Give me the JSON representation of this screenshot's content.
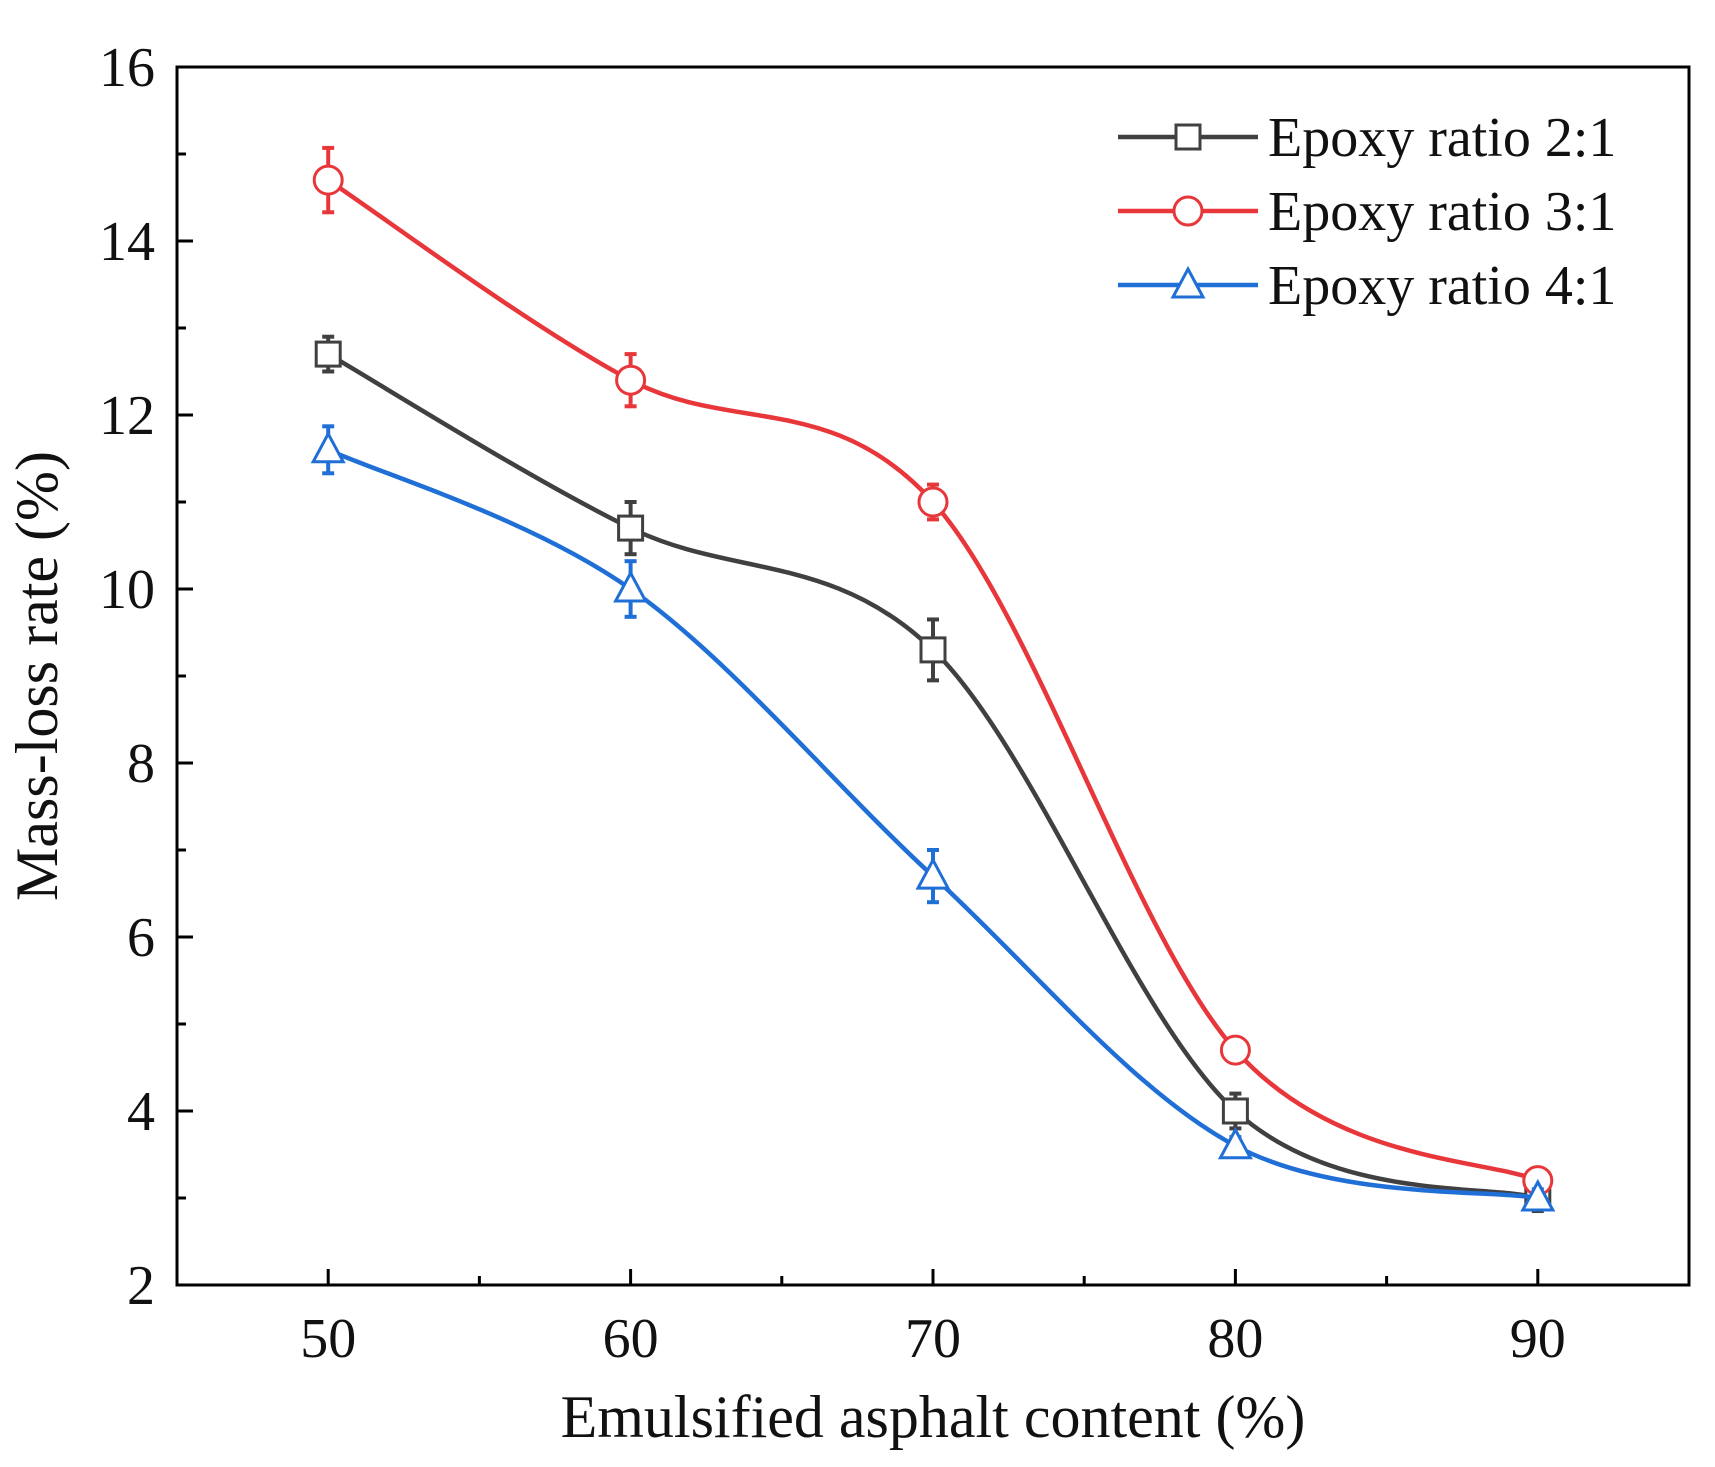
{
  "chart_data": {
    "type": "line",
    "title": "",
    "xlabel": "Emulsified asphalt content (%)",
    "ylabel": "Mass-loss rate (%)",
    "xlim": [
      45,
      95
    ],
    "ylim": [
      2,
      16
    ],
    "x_ticks": [
      50,
      60,
      70,
      80,
      90
    ],
    "x_tick_labels": [
      "50",
      "60",
      "70",
      "80",
      "90"
    ],
    "x_minor_ticks": [
      55,
      65,
      75,
      85
    ],
    "y_ticks": [
      2,
      4,
      6,
      8,
      10,
      12,
      14,
      16
    ],
    "y_tick_labels": [
      "2",
      "4",
      "6",
      "8",
      "10",
      "12",
      "14",
      "16"
    ],
    "y_minor_ticks": [
      3,
      5,
      7,
      9,
      11,
      13,
      15
    ],
    "grid": false,
    "legend_position": "top-right",
    "x": [
      50,
      60,
      70,
      80,
      90
    ],
    "series": [
      {
        "name": "Epoxy ratio 2:1",
        "marker": "square",
        "color": "#404040",
        "values": [
          12.7,
          10.7,
          9.3,
          4.0,
          3.0
        ],
        "errors": [
          0.2,
          0.3,
          0.35,
          0.2,
          0.15
        ]
      },
      {
        "name": "Epoxy ratio 3:1",
        "marker": "circle",
        "color": "#e8373b",
        "values": [
          14.7,
          12.4,
          11.0,
          4.7,
          3.2
        ],
        "errors": [
          0.37,
          0.3,
          0.2,
          0.12,
          0.12
        ]
      },
      {
        "name": "Epoxy ratio 4:1",
        "marker": "triangle",
        "color": "#1f6fd6",
        "values": [
          11.6,
          10.0,
          6.7,
          3.6,
          3.0
        ],
        "errors": [
          0.27,
          0.32,
          0.3,
          0.1,
          0.1
        ]
      }
    ]
  }
}
